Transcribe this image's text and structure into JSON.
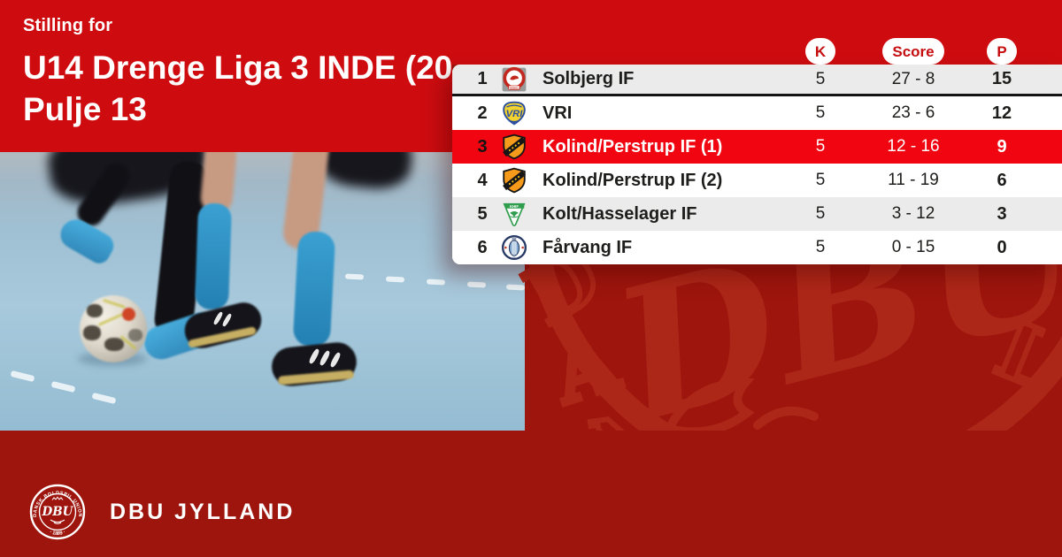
{
  "header": {
    "eyebrow": "Stilling for",
    "title": "U14 Drenge Liga 3 INDE (20..",
    "subtitle": "Pulje 13"
  },
  "table": {
    "columns": [
      {
        "label": "K"
      },
      {
        "label": "Score"
      },
      {
        "label": "P"
      }
    ],
    "rows": [
      {
        "pos": "1",
        "club": "Solbjerg IF",
        "logo": "solbjerg",
        "k": "5",
        "score": "27 - 8",
        "p": "15",
        "highlight": false,
        "divider_below": true
      },
      {
        "pos": "2",
        "club": "VRI",
        "logo": "vri",
        "k": "5",
        "score": "23 - 6",
        "p": "12",
        "highlight": false,
        "divider_below": false
      },
      {
        "pos": "3",
        "club": "Kolind/Perstrup IF (1)",
        "logo": "kolind",
        "k": "5",
        "score": "12 - 16",
        "p": "9",
        "highlight": true,
        "divider_below": false
      },
      {
        "pos": "4",
        "club": "Kolind/Perstrup IF (2)",
        "logo": "kolind",
        "k": "5",
        "score": "11 - 19",
        "p": "6",
        "highlight": false,
        "divider_below": false
      },
      {
        "pos": "5",
        "club": "Kolt/Hasselager IF",
        "logo": "kolt",
        "k": "5",
        "score": "3 - 12",
        "p": "3",
        "highlight": false,
        "divider_below": false
      },
      {
        "pos": "6",
        "club": "Fårvang IF",
        "logo": "faarvang",
        "k": "5",
        "score": "0 - 15",
        "p": "0",
        "highlight": false,
        "divider_below": false
      }
    ]
  },
  "watermark": {
    "letters": "DBU"
  },
  "footer": {
    "brand": "DBU JYLLAND",
    "crest_ring_top": "DANSK BOLDSPIL UNION",
    "crest_center": "DBU",
    "crest_ring_bottom": "· 1889 ·"
  },
  "colors": {
    "brand_red": "#ce0c10",
    "highlight_red": "#f00511",
    "background_red": "#9d150d",
    "watermark_red": "#ad2718",
    "row_alt_gray": "#ebebeb"
  }
}
